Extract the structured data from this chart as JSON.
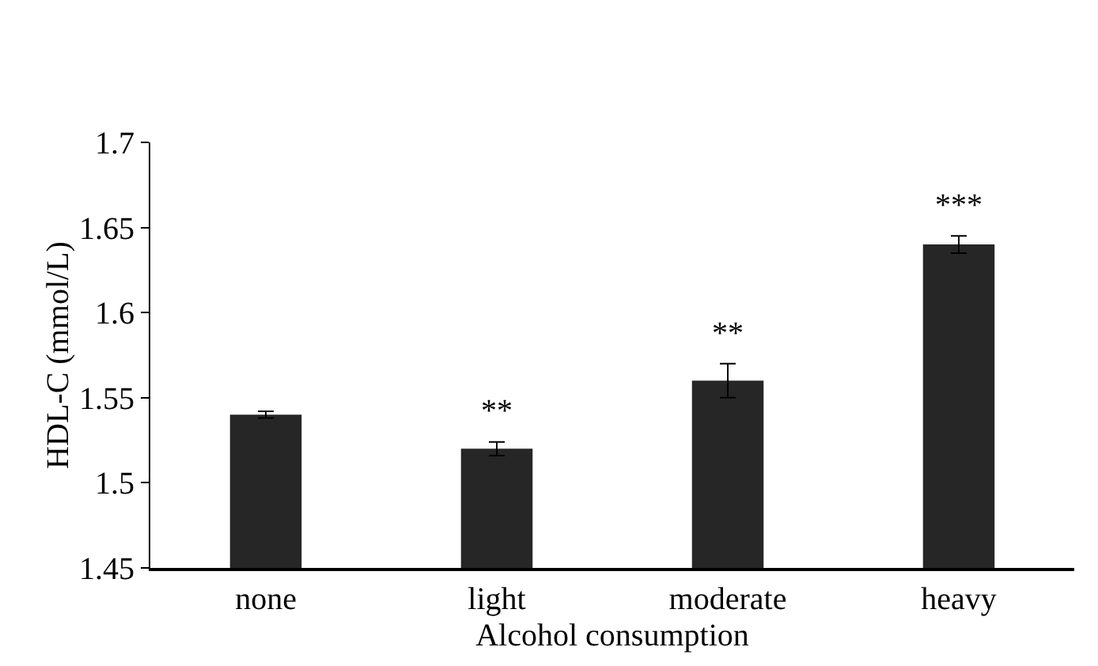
{
  "chart_data": {
    "type": "bar",
    "xlabel": "Alcohol consumption",
    "ylabel": "HDL-C (mmol/L)",
    "categories": [
      "none",
      "light",
      "moderate",
      "heavy"
    ],
    "values": [
      1.54,
      1.52,
      1.56,
      1.64
    ],
    "errors": [
      0.002,
      0.004,
      0.01,
      0.005
    ],
    "color": "#262626",
    "ylim": [
      1.45,
      1.7
    ],
    "yticks": [
      1.45,
      1.5,
      1.55,
      1.6,
      1.65,
      1.7
    ],
    "value_labels": [
      null,
      "**",
      "**",
      "***"
    ],
    "grid": false
  }
}
